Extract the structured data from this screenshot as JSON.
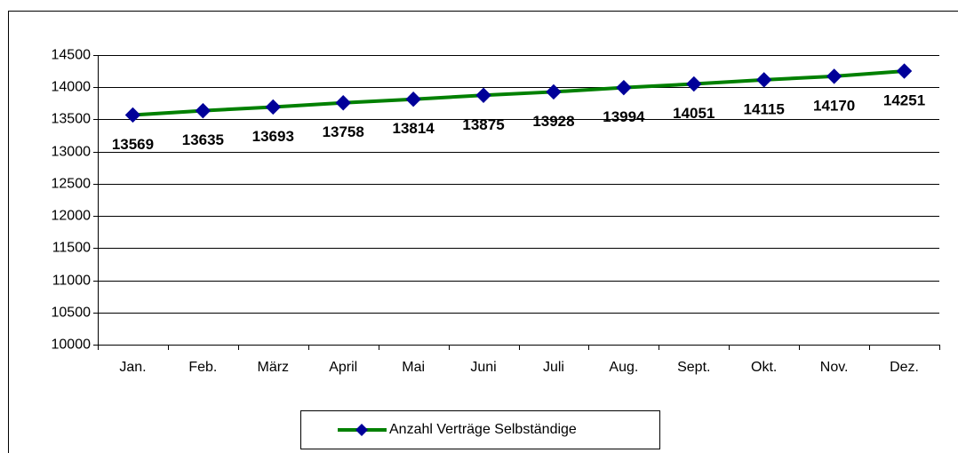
{
  "chart_data": {
    "type": "line",
    "categories": [
      "Jan.",
      "Feb.",
      "März",
      "April",
      "Mai",
      "Juni",
      "Juli",
      "Aug.",
      "Sept.",
      "Okt.",
      "Nov.",
      "Dez."
    ],
    "series": [
      {
        "name": "Anzahl Verträge Selbständige",
        "color": "#008000",
        "marker_color": "#000099",
        "values": [
          13569,
          13635,
          13693,
          13758,
          13814,
          13875,
          13928,
          13994,
          14051,
          14115,
          14170,
          14251
        ]
      }
    ],
    "ylim": [
      10000,
      14500
    ],
    "yticks": [
      10000,
      10500,
      11000,
      11500,
      12000,
      12500,
      13000,
      13500,
      14000,
      14500
    ],
    "grid": true,
    "legend": "bottom"
  }
}
